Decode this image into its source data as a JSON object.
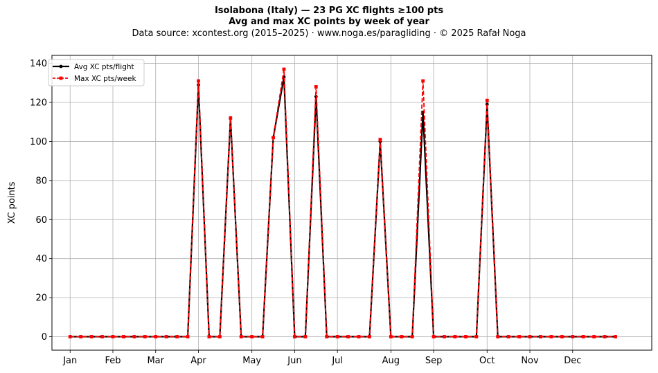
{
  "chart_data": {
    "type": "line",
    "title": "Isolabona (Italy)  —  23 PG XC flights ≥100 pts",
    "subtitle": "Avg and max XC points by week of year",
    "source": "Data source: xcontest.org (2015–2025)  ·  www.noga.es/paragliding  ·  © 2025 Rafał Noga",
    "xlabel": "",
    "ylabel": "XC points",
    "ylim": [
      -6.9,
      144.1
    ],
    "xlim": [
      -1.7,
      54.4
    ],
    "grid": true,
    "legend": "top-left",
    "x_ticks": [
      {
        "label": "Jan",
        "x": 0
      },
      {
        "label": "Feb",
        "x": 4
      },
      {
        "label": "Mar",
        "x": 8
      },
      {
        "label": "Apr",
        "x": 12
      },
      {
        "label": "May",
        "x": 17
      },
      {
        "label": "Jun",
        "x": 21
      },
      {
        "label": "Jul",
        "x": 25
      },
      {
        "label": "Aug",
        "x": 30
      },
      {
        "label": "Sep",
        "x": 34
      },
      {
        "label": "Oct",
        "x": 39
      },
      {
        "label": "Nov",
        "x": 43
      },
      {
        "label": "Dec",
        "x": 47
      }
    ],
    "y_ticks": [
      0,
      20,
      40,
      60,
      80,
      100,
      120,
      140
    ],
    "x": [
      0,
      1,
      2,
      3,
      4,
      5,
      6,
      7,
      8,
      9,
      10,
      11,
      12,
      13,
      14,
      15,
      16,
      17,
      18,
      19,
      20,
      21,
      22,
      23,
      24,
      25,
      26,
      27,
      28,
      29,
      30,
      31,
      32,
      33,
      34,
      35,
      36,
      37,
      38,
      39,
      40,
      41,
      42,
      43,
      44,
      45,
      46,
      47,
      48,
      49,
      50,
      51
    ],
    "series": [
      {
        "name": "Avg XC pts/flight",
        "color": "#000000",
        "style": "solid",
        "marker": "circle",
        "values": [
          0,
          0,
          0,
          0,
          0,
          0,
          0,
          0,
          0,
          0,
          0,
          0,
          129,
          0,
          0,
          112,
          0,
          0,
          0,
          102,
          133,
          0,
          0,
          123,
          0,
          0,
          0,
          0,
          0,
          100,
          0,
          0,
          0,
          115,
          0,
          0,
          0,
          0,
          0,
          119,
          0,
          0,
          0,
          0,
          0,
          0,
          0,
          0,
          0,
          0,
          0,
          0
        ]
      },
      {
        "name": "Max XC pts/week",
        "color": "#ff0000",
        "style": "dashed",
        "marker": "square",
        "values": [
          0,
          0,
          0,
          0,
          0,
          0,
          0,
          0,
          0,
          0,
          0,
          0,
          131,
          0,
          0,
          112,
          0,
          0,
          0,
          102,
          137,
          0,
          0,
          128,
          0,
          0,
          0,
          0,
          0,
          101,
          0,
          0,
          0,
          131,
          0,
          0,
          0,
          0,
          0,
          121,
          0,
          0,
          0,
          0,
          0,
          0,
          0,
          0,
          0,
          0,
          0,
          0
        ]
      }
    ]
  }
}
